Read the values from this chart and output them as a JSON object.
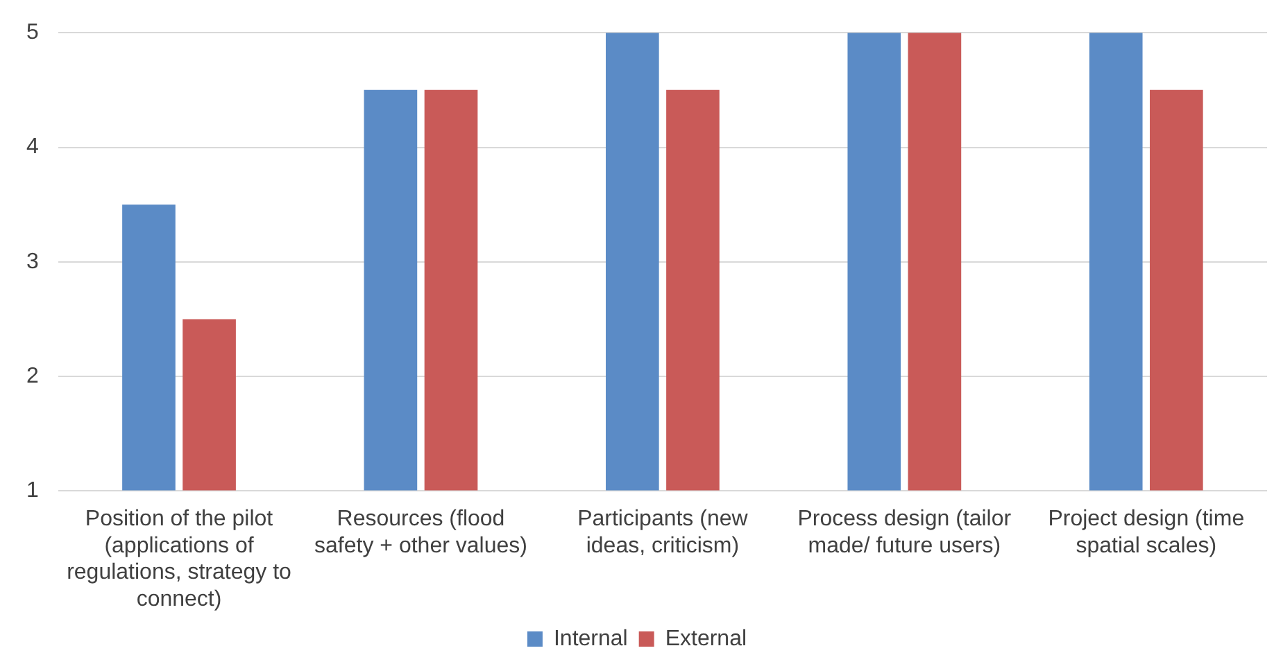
{
  "chart_data": {
    "type": "bar",
    "categories": [
      "Position of the pilot (applications of regulations, strategy to connect)",
      "Resources (flood safety + other values)",
      "Participants (new ideas, criticism)",
      "Process design (tailor made/ future users)",
      "Project design (time spatial scales)"
    ],
    "series": [
      {
        "name": "Internal",
        "color": "#5b8bc6",
        "values": [
          3.5,
          4.5,
          5,
          5,
          5
        ]
      },
      {
        "name": "External",
        "color": "#c95a58",
        "values": [
          2.5,
          4.5,
          4.5,
          5,
          4.5
        ]
      }
    ],
    "ylim": [
      1,
      5
    ],
    "yticks": [
      1,
      2,
      3,
      4,
      5
    ],
    "grid": "y",
    "legend": "bottom"
  }
}
